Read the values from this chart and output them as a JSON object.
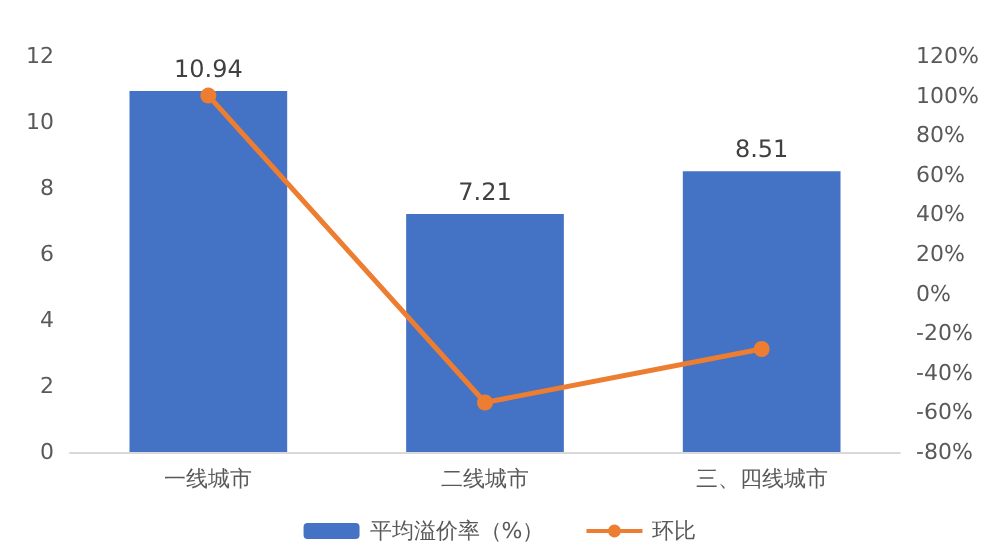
{
  "chart_data": {
    "type": "bar",
    "categories": [
      "一线城市",
      "二线城市",
      "三、四线城市"
    ],
    "series": [
      {
        "name": "平均溢价率（%）",
        "color": "#4472c4",
        "values": [
          10.94,
          7.21,
          8.51
        ],
        "value_labels": [
          "10.94",
          "7.21",
          "8.51"
        ]
      },
      {
        "name": "环比",
        "type": "line",
        "axis": "y2",
        "color": "#ed7d31",
        "values": [
          100,
          -55,
          -28
        ],
        "marker": "circle"
      }
    ],
    "ylim": [
      0,
      12
    ],
    "yticks": [
      0,
      2,
      4,
      6,
      8,
      10,
      12
    ],
    "y2lim": [
      -80,
      120
    ],
    "y2ticks": [
      {
        "value": -80,
        "label": "-80%"
      },
      {
        "value": -60,
        "label": "-60%"
      },
      {
        "value": -40,
        "label": "-40%"
      },
      {
        "value": -20,
        "label": "-20%"
      },
      {
        "value": 0,
        "label": "0%"
      },
      {
        "value": 20,
        "label": "20%"
      },
      {
        "value": 40,
        "label": "40%"
      },
      {
        "value": 60,
        "label": "60%"
      },
      {
        "value": 80,
        "label": "80%"
      },
      {
        "value": 100,
        "label": "100%"
      },
      {
        "value": 120,
        "label": "120%"
      }
    ],
    "grid": false,
    "legend": "bottom"
  }
}
